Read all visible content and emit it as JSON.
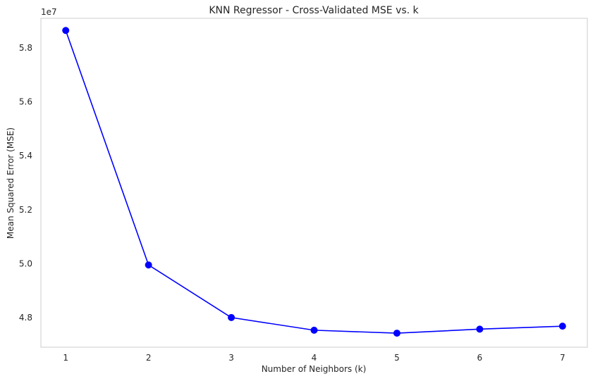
{
  "chart_data": {
    "type": "line",
    "title": "KNN Regressor - Cross-Validated MSE vs. k",
    "xlabel": "Number of Neighbors (k)",
    "ylabel": "Mean Squared Error (MSE)",
    "y_offset_label": "1e7",
    "x": [
      1,
      2,
      3,
      4,
      5,
      6,
      7
    ],
    "x_tick_labels": [
      "1",
      "2",
      "3",
      "4",
      "5",
      "6",
      "7"
    ],
    "y_ticks": [
      4.8,
      5.0,
      5.2,
      5.4,
      5.6,
      5.8
    ],
    "y_tick_labels": [
      "4.8",
      "5.0",
      "5.2",
      "5.4",
      "5.6",
      "5.8"
    ],
    "xlim": [
      0.7,
      7.3
    ],
    "ylim": [
      4.69,
      5.91
    ],
    "series": [
      {
        "values": [
          5.865,
          4.995,
          4.8,
          4.753,
          4.742,
          4.757,
          4.768
        ],
        "color": "#0000ff",
        "marker": "circle"
      }
    ],
    "grid": false,
    "legend": "none"
  },
  "colors": {
    "line": "#0000ff",
    "axes_edge": "#cccccc",
    "text": "#262626"
  }
}
